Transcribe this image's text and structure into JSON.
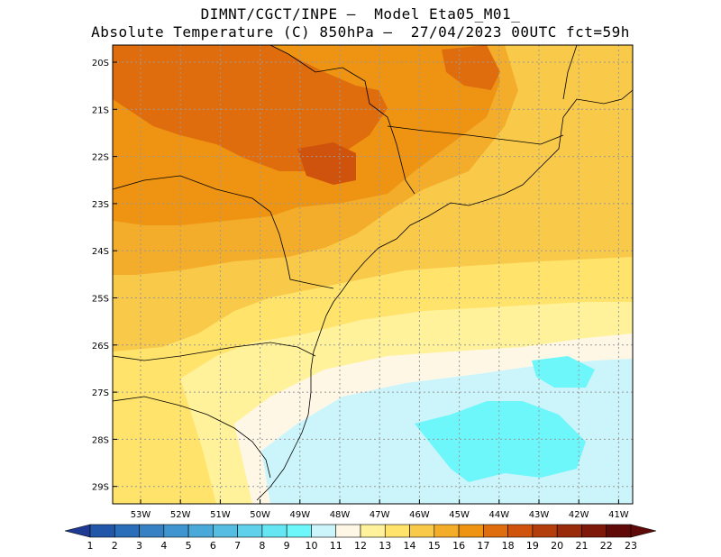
{
  "header": {
    "line1": "DIMNT/CGCT/INPE –  Model Eta05_M01_",
    "line2": "Absolute Temperature (C) 850hPa –  27/04/2023 00UTC fct=59h"
  },
  "map": {
    "lat_labels": [
      "20S",
      "21S",
      "22S",
      "23S",
      "24S",
      "25S",
      "26S",
      "27S",
      "28S",
      "29S"
    ],
    "lon_labels": [
      "53W",
      "52W",
      "51W",
      "50W",
      "49W",
      "48W",
      "47W",
      "46W",
      "45W",
      "44W",
      "43W",
      "42W",
      "41W"
    ]
  },
  "colorbar": {
    "labels": [
      "1",
      "2",
      "3",
      "4",
      "5",
      "6",
      "7",
      "8",
      "9",
      "10",
      "11",
      "12",
      "13",
      "14",
      "15",
      "16",
      "17",
      "18",
      "19",
      "20",
      "21",
      "22",
      "23"
    ],
    "colors": [
      "#1f3a93",
      "#2256a8",
      "#2a6db8",
      "#3581c4",
      "#3f95cf",
      "#4aa9d8",
      "#55bde2",
      "#5fd1ea",
      "#66e6f2",
      "#6ef7fa",
      "#ccf5fb",
      "#fff7e6",
      "#fff29a",
      "#ffe36a",
      "#f9c94a",
      "#f3ad2b",
      "#ee9412",
      "#df6d0d",
      "#cf530c",
      "#b33e0b",
      "#992a0a",
      "#7e1808",
      "#5f0a08"
    ]
  },
  "colors": {
    "land_border": "#000000",
    "grid": "#999999"
  }
}
